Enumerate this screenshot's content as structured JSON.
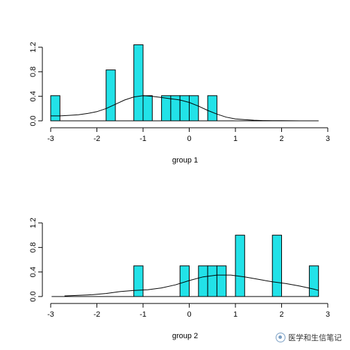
{
  "chart_data": [
    {
      "type": "histogram",
      "xlabel": "group 1",
      "xlim": [
        -3,
        3
      ],
      "ylim": [
        0,
        1.2
      ],
      "x_ticks": [
        -3,
        -2,
        -1,
        0,
        1,
        2,
        3
      ],
      "y_ticks": [
        0.0,
        0.4,
        0.8,
        1.2
      ],
      "y_tick_labels": [
        "0.0",
        "0.4",
        "0.8",
        "1.2"
      ],
      "bar_color": "#22e2e8",
      "bins": [
        {
          "x0": -3.0,
          "x1": -2.8,
          "density": 0.41
        },
        {
          "x0": -1.8,
          "x1": -1.6,
          "density": 0.83
        },
        {
          "x0": -1.2,
          "x1": -1.0,
          "density": 1.24
        },
        {
          "x0": -1.0,
          "x1": -0.8,
          "density": 0.41
        },
        {
          "x0": -0.6,
          "x1": -0.4,
          "density": 0.41
        },
        {
          "x0": -0.4,
          "x1": -0.2,
          "density": 0.41
        },
        {
          "x0": -0.2,
          "x1": 0.0,
          "density": 0.41
        },
        {
          "x0": 0.0,
          "x1": 0.2,
          "density": 0.41
        },
        {
          "x0": 0.4,
          "x1": 0.6,
          "density": 0.41
        }
      ],
      "density_curve": {
        "x": [
          -3.0,
          -2.8,
          -2.6,
          -2.4,
          -2.2,
          -2.0,
          -1.8,
          -1.6,
          -1.4,
          -1.2,
          -1.0,
          -0.8,
          -0.6,
          -0.4,
          -0.2,
          0.0,
          0.2,
          0.4,
          0.6,
          0.8,
          1.0,
          1.2,
          1.4,
          1.6,
          1.8,
          2.0,
          2.2,
          2.4,
          2.6,
          2.8
        ],
        "y": [
          0.08,
          0.08,
          0.09,
          0.1,
          0.12,
          0.15,
          0.2,
          0.27,
          0.34,
          0.39,
          0.41,
          0.4,
          0.38,
          0.36,
          0.34,
          0.3,
          0.24,
          0.17,
          0.11,
          0.06,
          0.03,
          0.02,
          0.01,
          0.005,
          0.003,
          0.002,
          0.001,
          0.0005,
          0.0002,
          0.0001
        ]
      }
    },
    {
      "type": "histogram",
      "xlabel": "group 2",
      "xlim": [
        -3,
        3
      ],
      "ylim": [
        0,
        1.2
      ],
      "x_ticks": [
        -3,
        -2,
        -1,
        0,
        1,
        2,
        3
      ],
      "y_ticks": [
        0.0,
        0.4,
        0.8,
        1.2
      ],
      "y_tick_labels": [
        "0.0",
        "0.4",
        "0.8",
        "1.2"
      ],
      "bar_color": "#22e2e8",
      "bins": [
        {
          "x0": -1.2,
          "x1": -1.0,
          "density": 0.5
        },
        {
          "x0": -0.2,
          "x1": 0.0,
          "density": 0.5
        },
        {
          "x0": 0.2,
          "x1": 0.4,
          "density": 0.5
        },
        {
          "x0": 0.4,
          "x1": 0.6,
          "density": 0.5
        },
        {
          "x0": 0.6,
          "x1": 0.8,
          "density": 0.5
        },
        {
          "x0": 1.0,
          "x1": 1.2,
          "density": 1.0
        },
        {
          "x0": 1.8,
          "x1": 2.0,
          "density": 1.0
        },
        {
          "x0": 2.6,
          "x1": 2.8,
          "density": 0.5
        }
      ],
      "density_curve": {
        "x": [
          -2.7,
          -2.4,
          -2.1,
          -1.8,
          -1.5,
          -1.2,
          -0.9,
          -0.6,
          -0.3,
          0.0,
          0.3,
          0.6,
          0.9,
          1.2,
          1.5,
          1.8,
          2.1,
          2.4,
          2.7,
          2.8
        ],
        "y": [
          0.01,
          0.02,
          0.03,
          0.05,
          0.08,
          0.1,
          0.11,
          0.14,
          0.19,
          0.26,
          0.32,
          0.35,
          0.35,
          0.32,
          0.28,
          0.24,
          0.21,
          0.17,
          0.12,
          0.1
        ]
      }
    }
  ],
  "watermark": {
    "text": "医学和生信笔记",
    "icon": "wechat-logo-icon"
  }
}
